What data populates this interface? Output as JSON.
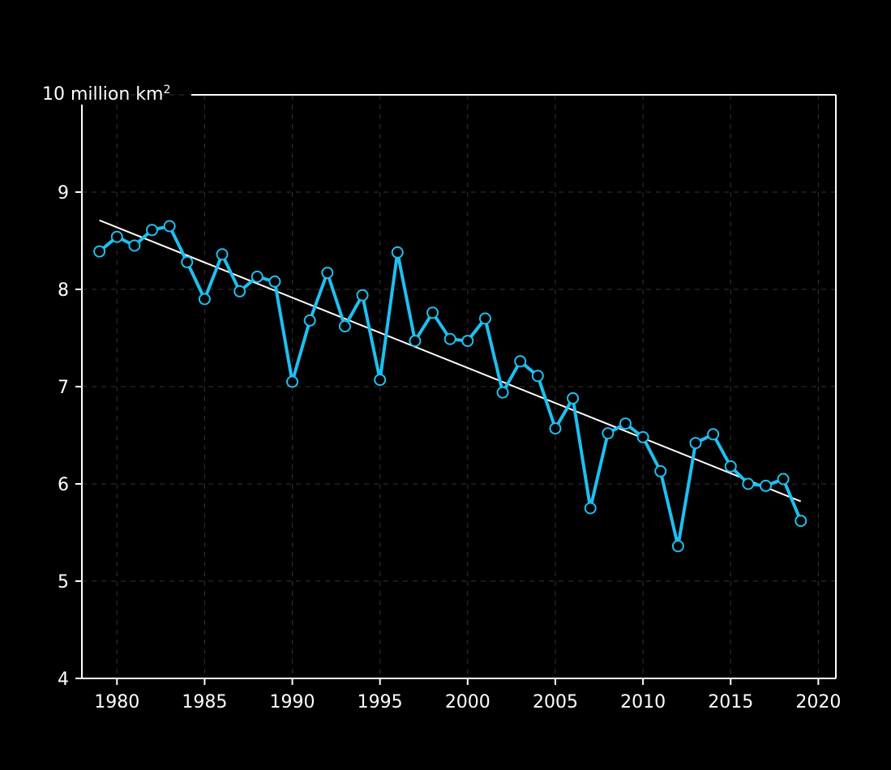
{
  "chart_data": {
    "type": "line",
    "title": "",
    "xlabel": "",
    "ylabel": "",
    "unit_label": {
      "prefix": "10 million km",
      "superscript": "2"
    },
    "xlim": [
      1978,
      2021
    ],
    "ylim": [
      4,
      10
    ],
    "x_ticks": [
      1980,
      1985,
      1990,
      1995,
      2000,
      2005,
      2010,
      2015,
      2020
    ],
    "y_ticks": [
      4,
      5,
      6,
      7,
      8,
      9
    ],
    "grid": true,
    "legend": "none",
    "colors": {
      "background": "#000000",
      "series": "#1ec0f0",
      "trend": "#ffffff",
      "axes": "#ffffff",
      "grid": "#333333"
    },
    "series": [
      {
        "x": [
          1979,
          1980,
          1981,
          1982,
          1983,
          1984,
          1985,
          1986,
          1987,
          1988,
          1989,
          1990,
          1991,
          1992,
          1993,
          1994,
          1995,
          1996,
          1997,
          1998,
          1999,
          2000,
          2001,
          2002,
          2003,
          2004,
          2005,
          2006,
          2007,
          2008,
          2009,
          2010,
          2011,
          2012,
          2013,
          2014,
          2015,
          2016,
          2017,
          2018,
          2019
        ],
        "values": [
          8.39,
          8.54,
          8.45,
          8.61,
          8.65,
          8.28,
          7.9,
          8.36,
          7.98,
          8.13,
          8.08,
          7.05,
          7.68,
          8.17,
          7.62,
          7.94,
          7.07,
          8.38,
          7.47,
          7.76,
          7.49,
          7.47,
          7.7,
          6.94,
          7.26,
          7.11,
          6.57,
          6.88,
          5.75,
          6.52,
          6.62,
          6.48,
          6.13,
          5.36,
          6.42,
          6.51,
          6.18,
          6.0,
          5.98,
          6.05,
          5.62
        ]
      }
    ],
    "trend_line": {
      "x": [
        1979,
        2019
      ],
      "values": [
        8.71,
        5.82
      ]
    }
  }
}
